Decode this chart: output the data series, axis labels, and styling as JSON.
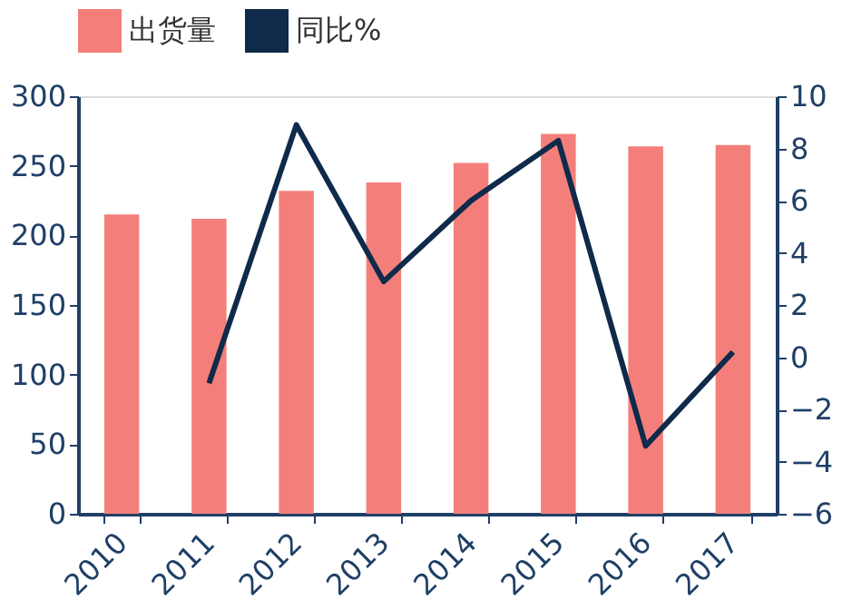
{
  "chart_data": {
    "type": "bar",
    "categories": [
      "2010",
      "2011",
      "2012",
      "2013",
      "2014",
      "2015",
      "2016",
      "2017"
    ],
    "series": [
      {
        "name": "出货量",
        "color": "#f47f7a",
        "values": [
          215,
          212,
          232,
          238,
          252,
          273,
          264,
          265
        ]
      },
      {
        "name": "同比%",
        "type": "line",
        "axis": "y2",
        "color": "#0f2a4a",
        "values": [
          null,
          -1.0,
          8.9,
          2.9,
          6.0,
          8.3,
          -3.4,
          0.2
        ]
      }
    ],
    "ylim": [
      0,
      300
    ],
    "yticks": [
      0,
      50,
      100,
      150,
      200,
      250,
      300
    ],
    "y2lim": [
      -6,
      10
    ],
    "y2ticks": [
      -6,
      -4,
      -2,
      0,
      2,
      4,
      6,
      8,
      10
    ],
    "legend": "top",
    "grid": false
  }
}
